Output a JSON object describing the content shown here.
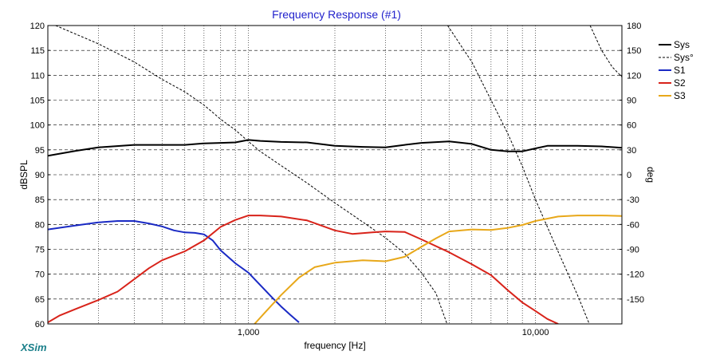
{
  "brand": "XSim",
  "colors": {
    "background": "#ffffff",
    "frame": "#000000",
    "grid": "#000000",
    "title": "#2222cc",
    "brand": "#1a7f8a"
  },
  "chart_data": {
    "type": "line",
    "title": "Frequency Response (#1)",
    "xlabel": "frequency [Hz]",
    "ylabel": "dBSPL",
    "y2label": "deg",
    "xscale": "log",
    "xlim": [
      200,
      20000
    ],
    "ylim": [
      60,
      120
    ],
    "y2lim": [
      -180,
      180
    ],
    "x_tick_labels": [
      {
        "x": 1000,
        "label": "1,000"
      },
      {
        "x": 10000,
        "label": "10,000"
      }
    ],
    "y_ticks": [
      60,
      65,
      70,
      75,
      80,
      85,
      90,
      95,
      100,
      105,
      110,
      115,
      120
    ],
    "y2_ticks": [
      -150,
      -120,
      -90,
      -60,
      -30,
      0,
      30,
      60,
      90,
      120,
      150,
      180
    ],
    "grid": true,
    "legend_position": "right",
    "series": [
      {
        "name": "Sys",
        "axis": "left",
        "color": "#000000",
        "dash": false,
        "width": 2,
        "points": [
          [
            200,
            93.8
          ],
          [
            250,
            94.8
          ],
          [
            300,
            95.5
          ],
          [
            400,
            96.0
          ],
          [
            500,
            96.0
          ],
          [
            600,
            96.0
          ],
          [
            700,
            96.3
          ],
          [
            800,
            96.4
          ],
          [
            900,
            96.5
          ],
          [
            1000,
            97.0
          ],
          [
            1100,
            96.8
          ],
          [
            1300,
            96.6
          ],
          [
            1600,
            96.5
          ],
          [
            2000,
            95.8
          ],
          [
            2500,
            95.6
          ],
          [
            3000,
            95.5
          ],
          [
            3500,
            96.0
          ],
          [
            4000,
            96.4
          ],
          [
            5000,
            96.7
          ],
          [
            6000,
            96.2
          ],
          [
            7000,
            95.0
          ],
          [
            8000,
            94.7
          ],
          [
            9000,
            94.7
          ],
          [
            10000,
            95.3
          ],
          [
            11000,
            95.8
          ],
          [
            14000,
            95.8
          ],
          [
            17000,
            95.7
          ],
          [
            20000,
            95.4
          ]
        ]
      },
      {
        "name": "Sys°",
        "axis": "right",
        "color": "#000000",
        "dash": true,
        "width": 1,
        "points": [
          [
            200,
            -180
          ],
          [
            213,
            180
          ],
          [
            300,
            158
          ],
          [
            400,
            136
          ],
          [
            500,
            115
          ],
          [
            600,
            100
          ],
          [
            700,
            84
          ],
          [
            800,
            67
          ],
          [
            900,
            54
          ],
          [
            1000,
            40
          ],
          [
            1100,
            28
          ],
          [
            1300,
            11
          ],
          [
            1600,
            -10
          ],
          [
            2000,
            -34
          ],
          [
            2500,
            -57
          ],
          [
            3000,
            -76
          ],
          [
            3500,
            -95
          ],
          [
            4000,
            -118
          ],
          [
            4500,
            -143
          ],
          [
            4920,
            -180
          ],
          [
            4940,
            180
          ],
          [
            6000,
            136
          ],
          [
            7000,
            90
          ],
          [
            8000,
            50
          ],
          [
            9000,
            10
          ],
          [
            10000,
            -30
          ],
          [
            11000,
            -63
          ],
          [
            12000,
            -93
          ],
          [
            14000,
            -145
          ],
          [
            15400,
            -180
          ],
          [
            15500,
            180
          ],
          [
            17000,
            150
          ],
          [
            18500,
            130
          ],
          [
            20000,
            118
          ]
        ]
      },
      {
        "name": "S1",
        "axis": "left",
        "color": "#1a2ac4",
        "dash": false,
        "width": 2,
        "points": [
          [
            200,
            79.0
          ],
          [
            250,
            79.8
          ],
          [
            300,
            80.4
          ],
          [
            350,
            80.7
          ],
          [
            400,
            80.7
          ],
          [
            450,
            80.2
          ],
          [
            500,
            79.6
          ],
          [
            550,
            78.8
          ],
          [
            600,
            78.4
          ],
          [
            650,
            78.3
          ],
          [
            700,
            78.0
          ],
          [
            750,
            76.8
          ],
          [
            800,
            74.8
          ],
          [
            900,
            72.2
          ],
          [
            1000,
            70.3
          ],
          [
            1100,
            67.8
          ],
          [
            1200,
            65.5
          ],
          [
            1300,
            63.5
          ],
          [
            1400,
            61.8
          ],
          [
            1500,
            60.3
          ]
        ]
      },
      {
        "name": "S2",
        "axis": "left",
        "color": "#d8231a",
        "dash": false,
        "width": 2,
        "points": [
          [
            200,
            60.3
          ],
          [
            220,
            61.7
          ],
          [
            250,
            63.0
          ],
          [
            300,
            64.8
          ],
          [
            350,
            66.5
          ],
          [
            400,
            69.0
          ],
          [
            450,
            71.2
          ],
          [
            500,
            72.8
          ],
          [
            600,
            74.6
          ],
          [
            700,
            76.8
          ],
          [
            800,
            79.5
          ],
          [
            900,
            80.9
          ],
          [
            1000,
            81.8
          ],
          [
            1100,
            81.8
          ],
          [
            1300,
            81.6
          ],
          [
            1600,
            80.8
          ],
          [
            2000,
            78.8
          ],
          [
            2300,
            78.1
          ],
          [
            2700,
            78.4
          ],
          [
            3000,
            78.6
          ],
          [
            3500,
            78.5
          ],
          [
            4000,
            77.0
          ],
          [
            5000,
            74.4
          ],
          [
            6000,
            72.0
          ],
          [
            7000,
            69.8
          ],
          [
            8000,
            66.8
          ],
          [
            9000,
            64.3
          ],
          [
            10000,
            62.6
          ],
          [
            11000,
            61.0
          ],
          [
            12000,
            60.0
          ]
        ]
      },
      {
        "name": "S3",
        "axis": "left",
        "color": "#e8a81a",
        "dash": false,
        "width": 2,
        "points": [
          [
            1050,
            60.0
          ],
          [
            1150,
            62.5
          ],
          [
            1300,
            65.8
          ],
          [
            1500,
            69.3
          ],
          [
            1700,
            71.4
          ],
          [
            2000,
            72.3
          ],
          [
            2500,
            72.8
          ],
          [
            3000,
            72.6
          ],
          [
            3500,
            73.5
          ],
          [
            4000,
            75.5
          ],
          [
            4500,
            77.2
          ],
          [
            5000,
            78.6
          ],
          [
            6000,
            79.0
          ],
          [
            7000,
            78.9
          ],
          [
            8000,
            79.3
          ],
          [
            9000,
            79.9
          ],
          [
            10000,
            80.7
          ],
          [
            12000,
            81.6
          ],
          [
            14000,
            81.8
          ],
          [
            17000,
            81.8
          ],
          [
            20000,
            81.7
          ]
        ]
      }
    ]
  }
}
